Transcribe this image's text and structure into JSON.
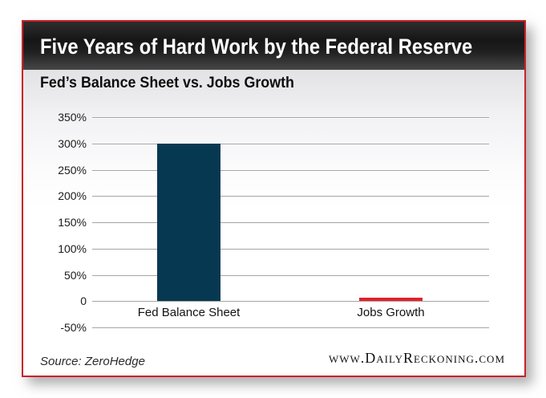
{
  "header": {
    "title": "Five Years of Hard Work by the Federal Reserve"
  },
  "subtitle": "Fed’s Balance Sheet vs. Jobs Growth",
  "footer": {
    "source": "Source: ZeroHedge",
    "watermark": "www.DailyReckoning.com"
  },
  "colors": {
    "panel_border_red": "#cc2027",
    "header_black": "#1a1a1a",
    "fed_bar_navy": "#063951",
    "jobs_bar_red": "#e32028",
    "gridline_gray": "#a5a5a5"
  },
  "chart_data": {
    "type": "bar",
    "title": "Fed's Balance Sheet vs. Jobs Growth",
    "categories": [
      "Fed Balance Sheet",
      "Jobs Growth"
    ],
    "values": [
      300,
      2
    ],
    "bar_colors": [
      "#063951",
      "#e32028"
    ],
    "ylim": [
      -50,
      350
    ],
    "yticks": [
      {
        "label": "350%",
        "value": 350
      },
      {
        "label": "300%",
        "value": 300
      },
      {
        "label": "250%",
        "value": 250
      },
      {
        "label": "200%",
        "value": 200
      },
      {
        "label": "150%",
        "value": 150
      },
      {
        "label": "100%",
        "value": 100
      },
      {
        "label": "50%",
        "value": 50
      },
      {
        "label": "0",
        "value": 0
      },
      {
        "label": "-50%",
        "value": -50
      }
    ],
    "grid": "horizontal-only",
    "legend": "none",
    "xlabel": "",
    "ylabel": ""
  }
}
